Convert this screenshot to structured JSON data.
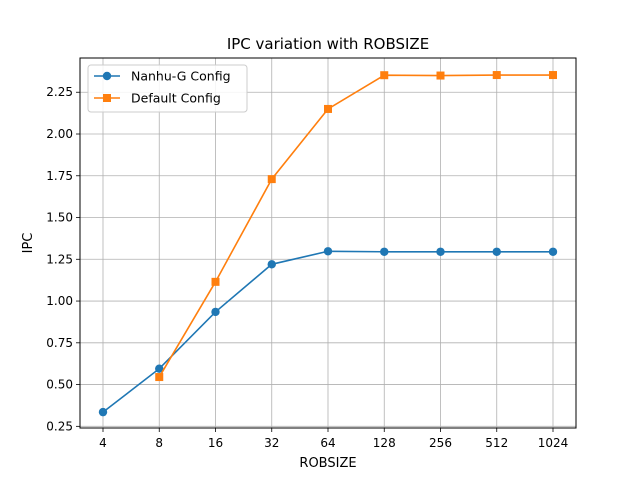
{
  "chart_data": {
    "type": "line",
    "title": "IPC variation with ROBSIZE",
    "xlabel": "ROBSIZE",
    "ylabel": "IPC",
    "categories": [
      "4",
      "8",
      "16",
      "32",
      "64",
      "128",
      "256",
      "512",
      "1024"
    ],
    "ylim": [
      0.24,
      2.455
    ],
    "yticks": [
      "0.25",
      "0.50",
      "0.75",
      "1.00",
      "1.25",
      "1.50",
      "1.75",
      "2.00",
      "2.25"
    ],
    "grid": true,
    "legend_position": "top-left",
    "series": [
      {
        "name": "Nanhu-G Config",
        "color": "#1f77b4",
        "marker": "circle",
        "values": [
          0.335,
          0.595,
          0.935,
          1.22,
          1.298,
          1.295,
          1.295,
          1.295,
          1.295
        ]
      },
      {
        "name": "Default Config",
        "color": "#ff7f0e",
        "marker": "square",
        "values": [
          null,
          0.545,
          1.115,
          1.73,
          2.15,
          2.352,
          2.35,
          2.353,
          2.353
        ]
      }
    ]
  }
}
